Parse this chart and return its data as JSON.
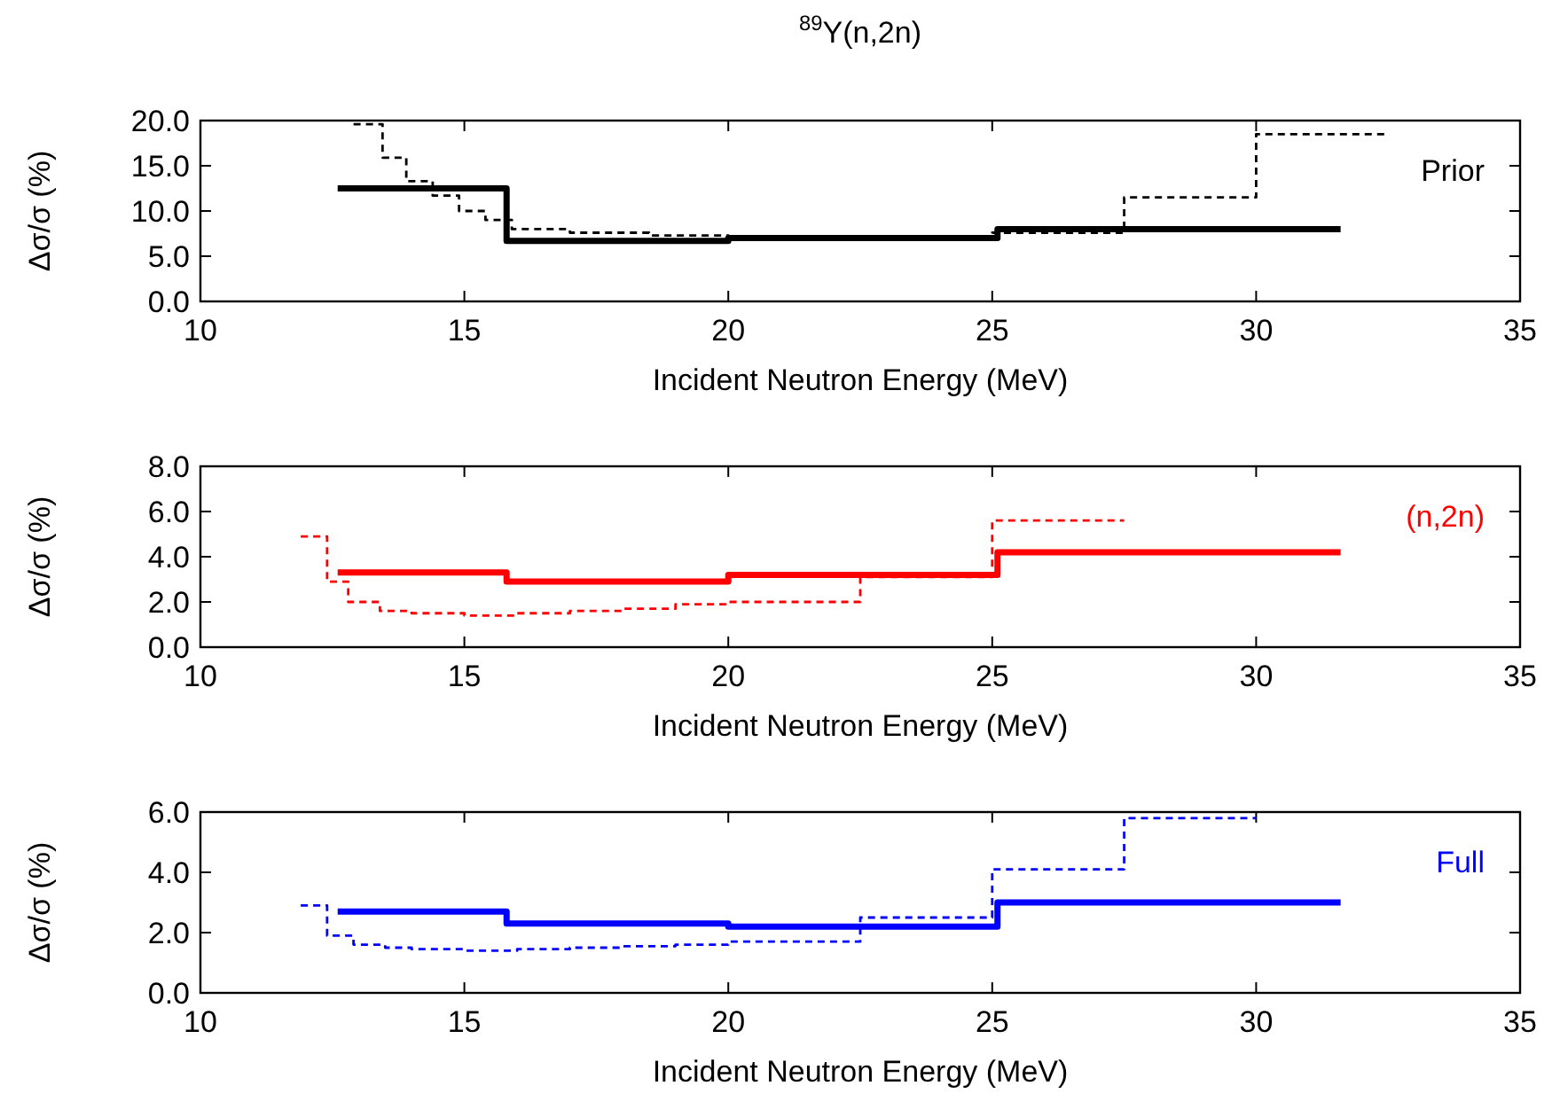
{
  "chart_data": [
    {
      "type": "step",
      "title": "$^{89}$Y(n,2n)",
      "xlabel": "Incident Neutron Energy (MeV)",
      "ylabel": "Δσ/σ (%)",
      "xlim": [
        10,
        35
      ],
      "xticks": [
        10,
        15,
        20,
        25,
        30,
        35
      ],
      "ylim": [
        0,
        20
      ],
      "yticks": [
        {
          "value": 0,
          "label": "0.0"
        },
        {
          "value": 5,
          "label": "5.0"
        },
        {
          "value": 10,
          "label": "10.0"
        },
        {
          "value": 15,
          "label": "15.0"
        },
        {
          "value": 20,
          "label": "20.0"
        }
      ],
      "grid": false,
      "annotations": [
        "Prior"
      ],
      "series": [
        {
          "color": "#000000",
          "line_style": "solid",
          "x": [
            12.6,
            15.8,
            20,
            25.1,
            31.6
          ],
          "values": [
            12.5,
            6.7,
            7.0,
            8.0,
            8.0
          ]
        },
        {
          "color": "#000000",
          "line_style": "dashed",
          "x": [
            12.9,
            13.45,
            13.9,
            14.4,
            14.9,
            15.4,
            15.9,
            17,
            18.5,
            20,
            25,
            27.5,
            30,
            32.5
          ],
          "values": [
            19.6,
            15.9,
            13.3,
            11.7,
            10.0,
            9.0,
            8.0,
            7.6,
            7.3,
            7.0,
            7.6,
            11.5,
            18.5,
            18.5
          ]
        }
      ]
    },
    {
      "type": "step",
      "xlabel": "Incident Neutron Energy (MeV)",
      "ylabel": "Δσ/σ (%)",
      "xlim": [
        10,
        35
      ],
      "xticks": [
        10,
        15,
        20,
        25,
        30,
        35
      ],
      "ylim": [
        0,
        8
      ],
      "yticks": [
        {
          "value": 0,
          "label": "0.0"
        },
        {
          "value": 2,
          "label": "2.0"
        },
        {
          "value": 4,
          "label": "4.0"
        },
        {
          "value": 6,
          "label": "6.0"
        },
        {
          "value": 8,
          "label": "8.0"
        }
      ],
      "grid": false,
      "annotations": [
        "(n,2n)"
      ],
      "series": [
        {
          "color": "#ff0000",
          "line_style": "solid",
          "x": [
            12.6,
            15.8,
            20,
            25.1,
            31.6
          ],
          "values": [
            3.3,
            2.9,
            3.2,
            4.2,
            4.2
          ]
        },
        {
          "color": "#ff0000",
          "line_style": "dashed",
          "x": [
            11.9,
            12.4,
            12.8,
            13.4,
            14,
            15,
            16,
            17,
            18,
            19,
            20,
            22.5,
            25,
            27.5
          ],
          "values": [
            4.9,
            2.9,
            2.0,
            1.6,
            1.5,
            1.4,
            1.5,
            1.6,
            1.7,
            1.9,
            2.0,
            3.1,
            5.6,
            5.6
          ]
        }
      ]
    },
    {
      "type": "step",
      "xlabel": "Incident Neutron Energy (MeV)",
      "ylabel": "Δσ/σ (%)",
      "xlim": [
        10,
        35
      ],
      "xticks": [
        10,
        15,
        20,
        25,
        30,
        35
      ],
      "ylim": [
        0,
        6
      ],
      "yticks": [
        {
          "value": 0,
          "label": "0.0"
        },
        {
          "value": 2,
          "label": "2.0"
        },
        {
          "value": 4,
          "label": "4.0"
        },
        {
          "value": 6,
          "label": "6.0"
        }
      ],
      "grid": false,
      "annotations": [
        "Full"
      ],
      "series": [
        {
          "color": "#0000ff",
          "line_style": "solid",
          "x": [
            12.6,
            15.8,
            20,
            25.1,
            31.6
          ],
          "values": [
            2.7,
            2.3,
            2.2,
            3.0,
            3.0
          ]
        },
        {
          "color": "#0000ff",
          "line_style": "dashed",
          "x": [
            11.9,
            12.4,
            12.9,
            13.5,
            14,
            15,
            16,
            17,
            18,
            19,
            20,
            22.5,
            25,
            27.5,
            30
          ],
          "values": [
            2.9,
            1.9,
            1.6,
            1.5,
            1.45,
            1.4,
            1.45,
            1.5,
            1.55,
            1.6,
            1.7,
            2.5,
            4.1,
            5.8,
            5.8
          ]
        }
      ]
    }
  ]
}
